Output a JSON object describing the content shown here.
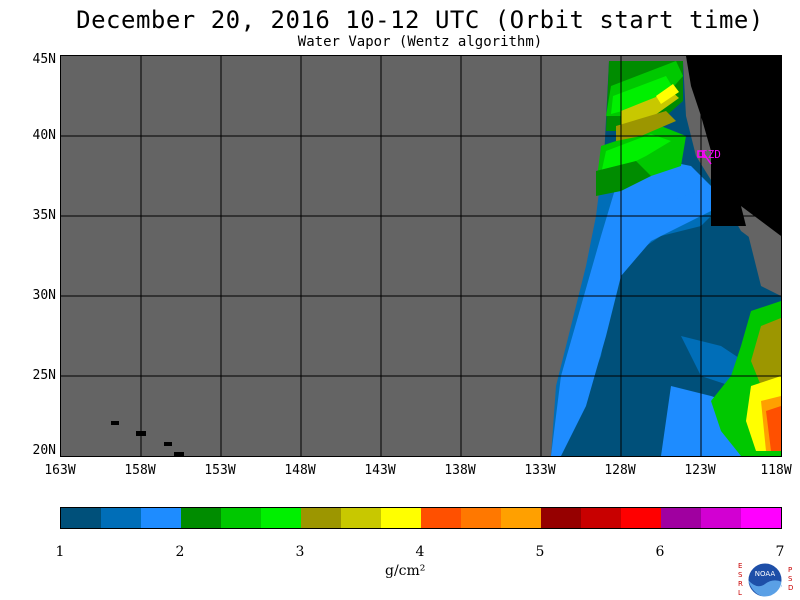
{
  "title": "December 20, 2016  10-12 UTC  (Orbit start time)",
  "subtitle": "Water Vapor (Wentz algorithm)",
  "station_label": "CZD",
  "lat_labels": [
    "45N",
    "40N",
    "35N",
    "30N",
    "25N",
    "20N"
  ],
  "lon_labels": [
    "163W",
    "158W",
    "153W",
    "148W",
    "143W",
    "138W",
    "133W",
    "128W",
    "123W",
    "118W"
  ],
  "colorbar": {
    "colors": [
      "#00507a",
      "#006eb8",
      "#1e8cff",
      "#008c00",
      "#00c800",
      "#00f000",
      "#9c9600",
      "#c8c800",
      "#ffff00",
      "#ff5000",
      "#ff7800",
      "#ffa000",
      "#960000",
      "#c80000",
      "#ff0000",
      "#a000a0",
      "#d200d2",
      "#ff00ff"
    ],
    "tick_labels": [
      "1",
      "2",
      "3",
      "4",
      "5",
      "6",
      "7"
    ],
    "unit_label": "g/cm²"
  },
  "logo": {
    "left_text": "ESRL",
    "right_text": "PSD",
    "center_text": "NOAA"
  },
  "colors": {
    "no_data": "#646464",
    "land": "#000000",
    "station": "#ff00ff"
  }
}
